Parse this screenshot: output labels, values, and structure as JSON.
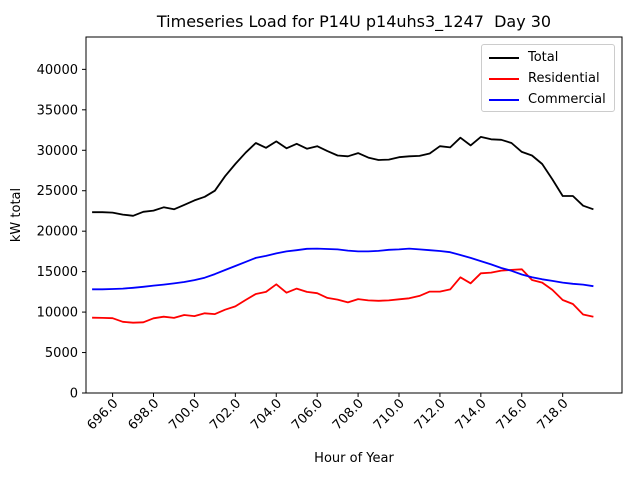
{
  "chart_data": {
    "type": "line",
    "title": "Timeseries Load for P14U p14uhs3_1247  Day 30",
    "xlabel": "Hour of Year",
    "ylabel": "kW total",
    "xlim": [
      694.7,
      720.9
    ],
    "ylim": [
      0,
      44000
    ],
    "grid": false,
    "legend_position": "upper right",
    "xticks": [
      696,
      698,
      700,
      702,
      704,
      706,
      708,
      710,
      712,
      714,
      716,
      718
    ],
    "xtick_labels": [
      "696.0",
      "698.0",
      "700.0",
      "702.0",
      "704.0",
      "706.0",
      "708.0",
      "710.0",
      "712.0",
      "714.0",
      "716.0",
      "718.0"
    ],
    "yticks": [
      0,
      5000,
      10000,
      15000,
      20000,
      25000,
      30000,
      35000,
      40000
    ],
    "ytick_labels": [
      "0",
      "5000",
      "10000",
      "15000",
      "20000",
      "25000",
      "30000",
      "35000",
      "40000"
    ],
    "x": [
      695.0,
      695.5,
      696.0,
      696.5,
      697.0,
      697.5,
      698.0,
      698.5,
      699.0,
      699.5,
      700.0,
      700.5,
      701.0,
      701.5,
      702.0,
      702.5,
      703.0,
      703.5,
      704.0,
      704.5,
      705.0,
      705.5,
      706.0,
      706.5,
      707.0,
      707.5,
      708.0,
      708.5,
      709.0,
      709.5,
      710.0,
      710.5,
      711.0,
      711.5,
      712.0,
      712.5,
      713.0,
      713.5,
      714.0,
      714.5,
      715.0,
      715.5,
      716.0,
      716.5,
      717.0,
      717.5,
      718.0,
      718.5,
      719.0,
      719.5
    ],
    "series": [
      {
        "name": "Total",
        "color": "#000000",
        "values": [
          22350,
          22350,
          22300,
          22050,
          21900,
          22400,
          22550,
          22950,
          22700,
          23250,
          23800,
          24250,
          25000,
          26800,
          28300,
          29700,
          30900,
          30300,
          31100,
          30250,
          30800,
          30200,
          30500,
          29900,
          29350,
          29250,
          29650,
          29100,
          28800,
          28850,
          29150,
          29250,
          29300,
          29600,
          30500,
          30350,
          31550,
          30600,
          31650,
          31350,
          31300,
          30900,
          29800,
          29350,
          28300,
          26400,
          24350,
          24350,
          23150,
          22700
        ]
      },
      {
        "name": "Residential",
        "color": "#ff0000",
        "values": [
          9310,
          9280,
          9250,
          8800,
          8690,
          8740,
          9230,
          9430,
          9280,
          9640,
          9500,
          9850,
          9750,
          10300,
          10700,
          11500,
          12240,
          12500,
          13440,
          12400,
          12900,
          12500,
          12330,
          11750,
          11550,
          11200,
          11600,
          11450,
          11400,
          11450,
          11580,
          11710,
          12000,
          12530,
          12530,
          12800,
          14300,
          13560,
          14800,
          14880,
          15130,
          15210,
          15290,
          13970,
          13640,
          12740,
          11500,
          11000,
          9700,
          9430
        ]
      },
      {
        "name": "Commercial",
        "color": "#0000ff",
        "values": [
          12820,
          12820,
          12850,
          12900,
          13000,
          13120,
          13270,
          13400,
          13550,
          13720,
          13950,
          14250,
          14700,
          15200,
          15700,
          16200,
          16700,
          16950,
          17250,
          17500,
          17650,
          17820,
          17850,
          17800,
          17750,
          17600,
          17500,
          17500,
          17560,
          17700,
          17750,
          17850,
          17750,
          17650,
          17550,
          17400,
          17050,
          16700,
          16300,
          15900,
          15450,
          15100,
          14650,
          14300,
          14050,
          13850,
          13650,
          13500,
          13400,
          13200
        ]
      }
    ]
  }
}
